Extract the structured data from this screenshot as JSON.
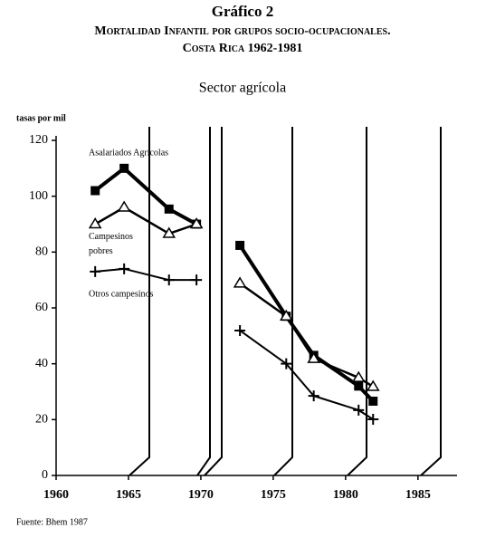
{
  "chart_data": {
    "type": "line",
    "title": "Gráfico 2",
    "subtitle_1": "Mortalidad Infantil por grupos socio-ocupacionales.",
    "subtitle_2": "Costa Rica 1962-1981",
    "chart_title": "Sector agrícola",
    "y_label": "tasas por mil",
    "source": "Fuente: Bhem 1987",
    "x": [
      1962.7,
      1964.7,
      1967.8,
      1969.7,
      1971,
      1972.7,
      1975.9,
      1977.8,
      1980.9,
      1981.9
    ],
    "series": [
      {
        "name": "Asalariados Agrícolas",
        "marker": "square",
        "values": [
          102,
          110,
          95.4,
          90,
          null,
          82.4,
          57,
          43,
          32,
          26.6
        ]
      },
      {
        "name": "Campesinos pobres",
        "marker": "triangle",
        "values": [
          90,
          96,
          86.6,
          90,
          null,
          68.8,
          57,
          41.8,
          35,
          31.8
        ]
      },
      {
        "name": "Otros campesinos",
        "marker": "plus",
        "values": [
          73,
          74,
          70,
          70,
          null,
          51.9,
          40,
          28.5,
          23.4,
          20.1
        ]
      }
    ],
    "xlim": [
      1960,
      1987.7
    ],
    "xticks": [
      1960,
      1965,
      1970,
      1975,
      1980,
      1985
    ],
    "ylim": [
      0,
      120
    ],
    "yticks": [
      0,
      20,
      40,
      60,
      80,
      100,
      120
    ]
  }
}
